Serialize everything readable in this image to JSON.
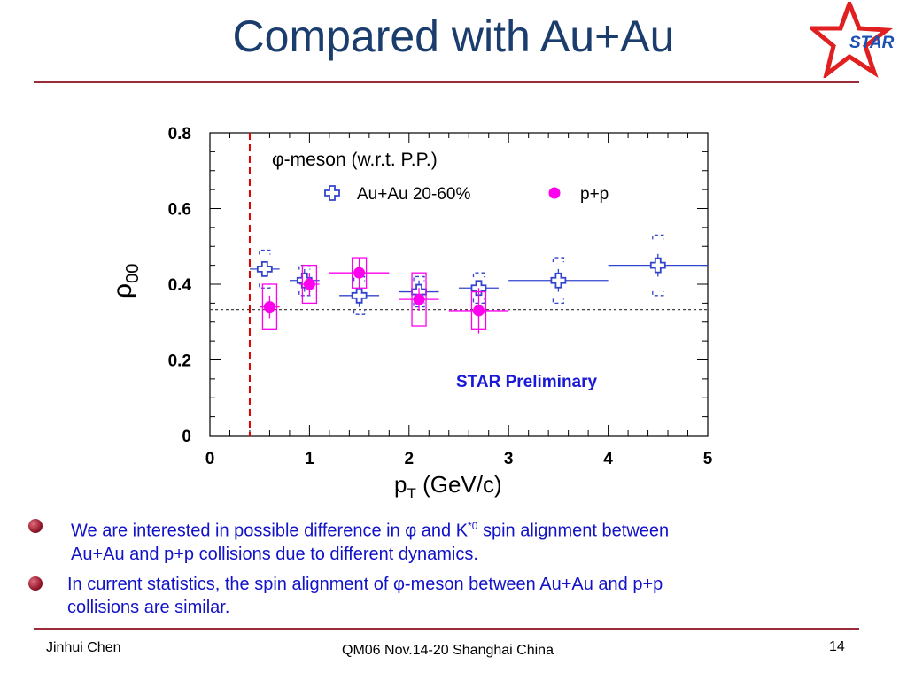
{
  "slide": {
    "title": "Compared with Au+Au",
    "logo_text": "STAR",
    "bullets": [
      {
        "pre": "We are interested in possible difference in φ and K",
        "sup": "*0",
        "post": " spin alignment between",
        "line2": "Au+Au and p+p collisions due to different dynamics."
      },
      {
        "line1": "In current statistics, the spin alignment of φ-meson between Au+Au and p+p",
        "line2": "collisions are similar."
      }
    ],
    "footer": {
      "author": "Jinhui Chen",
      "event": "QM06 Nov.14-20 Shanghai China",
      "page": "14"
    },
    "colors": {
      "title": "#1a3d6e",
      "rule": "#9b2b39",
      "bullet_text": "#1212c8",
      "logo": "#e02020"
    }
  },
  "chart_data": {
    "type": "scatter",
    "title": "φ-meson (w.r.t. P.P.)",
    "xlabel": "pT (GeV/c)",
    "ylabel": "ρ00",
    "xlim": [
      0,
      5
    ],
    "ylim": [
      0,
      0.8
    ],
    "x_ticks": [
      "0",
      "1",
      "2",
      "3",
      "4",
      "5"
    ],
    "y_ticks": [
      "0",
      "0.2",
      "0.4",
      "0.6",
      "0.8"
    ],
    "annotation": "STAR Preliminary",
    "reference_line_y": 0.333,
    "cut_line_x": 0.4,
    "series": [
      {
        "name": "Au+Au 20-60%",
        "marker": "open-cross",
        "color": "#3344cc",
        "points": [
          {
            "x": 0.55,
            "y": 0.44,
            "xerr": 0.15,
            "yerr": 0.02,
            "sys": 0.05
          },
          {
            "x": 0.95,
            "y": 0.41,
            "xerr": 0.15,
            "yerr": 0.03,
            "sys": 0.04
          },
          {
            "x": 1.5,
            "y": 0.37,
            "xerr": 0.2,
            "yerr": 0.03,
            "sys": 0.05
          },
          {
            "x": 2.1,
            "y": 0.38,
            "xerr": 0.2,
            "yerr": 0.03,
            "sys": 0.04
          },
          {
            "x": 2.7,
            "y": 0.39,
            "xerr": 0.2,
            "yerr": 0.02,
            "sys": 0.04
          },
          {
            "x": 3.5,
            "y": 0.41,
            "xerr": 0.5,
            "yerr": 0.03,
            "sys": 0.06
          },
          {
            "x": 4.5,
            "y": 0.45,
            "xerr": 0.5,
            "yerr": 0.03,
            "sys": 0.08
          }
        ]
      },
      {
        "name": "p+p",
        "marker": "filled-circle",
        "color": "#ff00ee",
        "points": [
          {
            "x": 0.6,
            "y": 0.34,
            "xerr": 0.1,
            "yerr": 0.03,
            "sys": 0.06
          },
          {
            "x": 1.0,
            "y": 0.4,
            "xerr": 0.1,
            "yerr": 0.03,
            "sys": 0.05
          },
          {
            "x": 1.5,
            "y": 0.43,
            "xerr": 0.3,
            "yerr": 0.04,
            "sys": 0.04
          },
          {
            "x": 2.1,
            "y": 0.36,
            "xerr": 0.2,
            "yerr": 0.03,
            "sys": 0.07
          },
          {
            "x": 2.7,
            "y": 0.33,
            "xerr": 0.3,
            "yerr": 0.06,
            "sys": 0.05
          }
        ]
      }
    ]
  }
}
